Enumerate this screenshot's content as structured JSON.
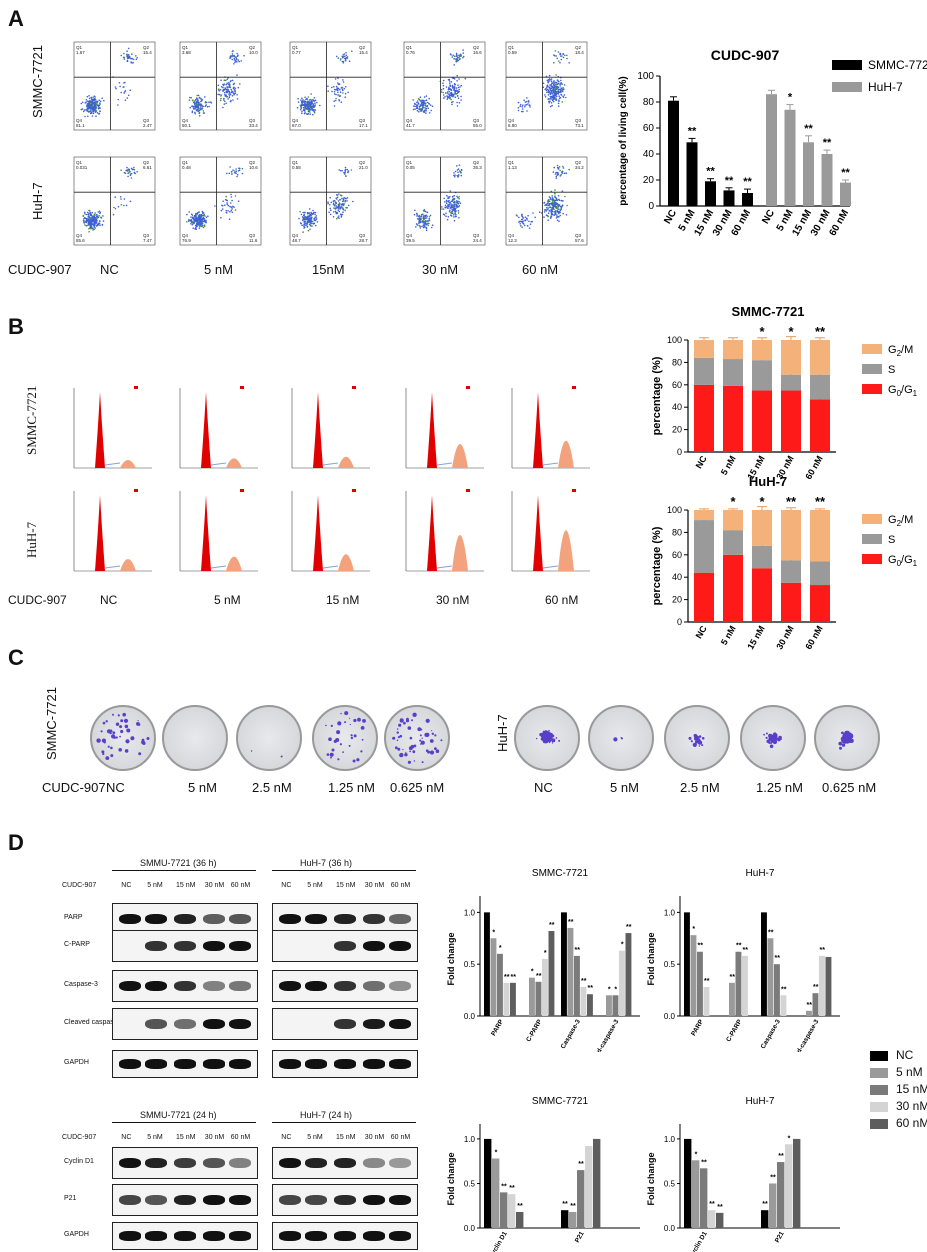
{
  "panel_labels": {
    "a": "A",
    "b": "B",
    "c": "C",
    "d": "D"
  },
  "panel_a": {
    "row_labels": [
      "SMMC-7721",
      "HuH-7"
    ],
    "treatment_label": "CUDC-907",
    "doses": [
      "NC",
      "5 nM",
      "15nM",
      "30 nM",
      "60 nM"
    ],
    "quadrant_values": [
      [
        [
          "1.67",
          "15.4",
          "81.1",
          "2.47"
        ],
        [
          "3.68",
          "10.0",
          "50.1",
          "33.4"
        ],
        [
          "0.77",
          "15.4",
          "67.0",
          "17.1"
        ],
        [
          "0.76",
          "16.6",
          "41.7",
          "55.0"
        ],
        [
          "0.59",
          "18.4",
          "6.90",
          "73.1"
        ]
      ],
      [
        [
          "0.031",
          "6.61",
          "85.6",
          "7.47"
        ],
        [
          "0.48",
          "10.6",
          "76.9",
          "11.6"
        ],
        [
          "0.58",
          "21.0",
          "48.7",
          "28.7"
        ],
        [
          "0.05",
          "35.3",
          "39.5",
          "24.4"
        ],
        [
          "1.13",
          "34.2",
          "12.3",
          "57.6"
        ]
      ]
    ],
    "quadrant_names": [
      "Q1",
      "Q2",
      "Q4",
      "Q3"
    ]
  },
  "panel_b": {
    "row_labels": [
      "SMMC-7721",
      "HuH-7"
    ],
    "treatment_label": "CUDC-907",
    "doses": [
      "NC",
      "5 nM",
      "15 nM",
      "30 nM",
      "60 nM"
    ]
  },
  "panel_c": {
    "row_labels": [
      "SMMC-7721",
      "HuH-7"
    ],
    "treatment_label": "CUDC-907",
    "doses": [
      "NC",
      "5 nM",
      "2.5 nM",
      "1.25 nM",
      "0.625 nM"
    ]
  },
  "panel_d": {
    "group_titles_top": [
      "SMMU-7721 (36 h)",
      "HuH-7 (36 h)"
    ],
    "group_titles_bottom": [
      "SMMU-7721 (24 h)",
      "HuH-7 (24 h)"
    ],
    "treatment_label": "CUDC-907",
    "lane_labels": [
      "NC",
      "5 nM",
      "15 nM",
      "30 nM",
      "60 nM"
    ],
    "blot_labels_top": [
      "PARP",
      "C-PARP",
      "Caspase-3",
      "Cleaved caspase-3",
      "GAPDH"
    ],
    "blot_labels_bottom": [
      "Cyclin D1",
      "P21",
      "GAPDH"
    ],
    "legend": [
      "NC",
      "5 nM",
      "15 nM",
      "30 nM",
      "60 nM"
    ],
    "legend_colors": [
      "#000000",
      "#9a9a9a",
      "#7b7b7b",
      "#d4d4d4",
      "#5e5e5e"
    ]
  },
  "chart_data": [
    {
      "id": "a-living",
      "type": "bar",
      "title": "CUDC-907",
      "ylabel": "percentage of living cell(%)",
      "ylim": [
        0,
        100
      ],
      "yticks": [
        0,
        20,
        40,
        60,
        80,
        100
      ],
      "groups": [
        "SMMC-7721",
        "HuH-7"
      ],
      "group_colors": [
        "#000000",
        "#9a9a9a"
      ],
      "categories": [
        "NC",
        "5 nM",
        "15 nM",
        "30 nM",
        "60 nM"
      ],
      "series": [
        {
          "name": "SMMC-7721",
          "values": [
            81,
            49,
            19,
            12,
            10
          ],
          "errors": [
            3,
            3,
            2,
            2,
            3
          ],
          "sig": [
            "",
            "**",
            "**",
            "**",
            "**"
          ]
        },
        {
          "name": "HuH-7",
          "values": [
            86,
            74,
            49,
            40,
            18
          ],
          "errors": [
            3,
            4,
            5,
            3,
            2
          ],
          "sig": [
            "",
            "*",
            "**",
            "**",
            "**"
          ]
        }
      ]
    },
    {
      "id": "b-smmc",
      "type": "bar",
      "stacked": true,
      "title": "SMMC-7721",
      "ylabel": "percentage (%)",
      "ylim": [
        0,
        100
      ],
      "yticks": [
        0,
        20,
        40,
        60,
        80,
        100
      ],
      "categories": [
        "NC",
        "5 nM",
        "15 nM",
        "30 nM",
        "60 nM"
      ],
      "sig": [
        "",
        "",
        "*",
        "*",
        "**"
      ],
      "series": [
        {
          "name": "G0/G1",
          "color": "#ff1a1a",
          "values": [
            60,
            59,
            55,
            55,
            47
          ],
          "errors": [
            4,
            3,
            9,
            1,
            1
          ]
        },
        {
          "name": "S",
          "color": "#9a9a9a",
          "values": [
            24,
            24,
            27,
            14,
            22
          ],
          "errors": [
            5,
            2,
            7,
            3,
            1
          ]
        },
        {
          "name": "G2/M",
          "color": "#f4b27a",
          "values": [
            16,
            17,
            18,
            31,
            31
          ],
          "errors": [
            2,
            2,
            2,
            3,
            2
          ]
        }
      ]
    },
    {
      "id": "b-huh",
      "type": "bar",
      "stacked": true,
      "title": "HuH-7",
      "ylabel": "percentage (%)",
      "ylim": [
        0,
        100
      ],
      "yticks": [
        0,
        20,
        40,
        60,
        80,
        100
      ],
      "categories": [
        "NC",
        "5 nM",
        "15 nM",
        "30 nM",
        "60 nM"
      ],
      "sig": [
        "",
        "*",
        "*",
        "**",
        "**"
      ],
      "series": [
        {
          "name": "G0/G1",
          "color": "#ff1a1a",
          "values": [
            44,
            60,
            48,
            35,
            33
          ],
          "errors": [
            1,
            2,
            2,
            2,
            1
          ]
        },
        {
          "name": "S",
          "color": "#9a9a9a",
          "values": [
            47,
            22,
            20,
            20,
            21
          ],
          "errors": [
            1,
            1,
            5,
            1,
            1
          ]
        },
        {
          "name": "G2/M",
          "color": "#f4b27a",
          "values": [
            9,
            18,
            32,
            45,
            46
          ],
          "errors": [
            1,
            1,
            3,
            2,
            1
          ]
        }
      ]
    },
    {
      "id": "d-smmc-apop",
      "type": "bar",
      "title": "SMMC-7721",
      "ylabel": "Fold change",
      "ylim": [
        0,
        1.1
      ],
      "yticks": [
        0.0,
        0.5,
        1.0
      ],
      "categories": [
        "PARP",
        "C-PARP",
        "Caspase-3",
        "Cleaved-caspase-3"
      ],
      "series": [
        {
          "name": "NC",
          "values": [
            1.0,
            0.0,
            1.0,
            0.0
          ]
        },
        {
          "name": "5 nM",
          "values": [
            0.75,
            0.37,
            0.85,
            0.2
          ]
        },
        {
          "name": "15 nM",
          "values": [
            0.6,
            0.33,
            0.58,
            0.2
          ]
        },
        {
          "name": "30 nM",
          "values": [
            0.32,
            0.55,
            0.28,
            0.63
          ]
        },
        {
          "name": "60 nM",
          "values": [
            0.32,
            0.82,
            0.21,
            0.8
          ]
        }
      ],
      "sig": [
        [
          "",
          "*",
          "*",
          "**",
          "**"
        ],
        [
          "",
          "*",
          "**",
          "*",
          "**"
        ],
        [
          "",
          "**",
          "**",
          "**",
          "**"
        ],
        [
          "",
          "*",
          "*",
          "*",
          "**"
        ]
      ]
    },
    {
      "id": "d-huh-apop",
      "type": "bar",
      "title": "HuH-7",
      "ylabel": "Fold change",
      "ylim": [
        0,
        1.1
      ],
      "yticks": [
        0.0,
        0.5,
        1.0
      ],
      "categories": [
        "PARP",
        "C-PARP",
        "Caspase-3",
        "Cleaved-caspase-3"
      ],
      "series": [
        {
          "name": "NC",
          "values": [
            1.0,
            0.0,
            1.0,
            0.0
          ]
        },
        {
          "name": "5 nM",
          "values": [
            0.78,
            0.32,
            0.75,
            0.05
          ]
        },
        {
          "name": "15 nM",
          "values": [
            0.62,
            0.62,
            0.5,
            0.22
          ]
        },
        {
          "name": "30 nM",
          "values": [
            0.28,
            0.58,
            0.2,
            0.58
          ]
        },
        {
          "name": "60 nM",
          "values": [
            0.0,
            0.0,
            0.0,
            0.57
          ]
        }
      ],
      "sig": [
        [
          "",
          "*",
          "**",
          "**",
          ""
        ],
        [
          "",
          "**",
          "**",
          "**",
          ""
        ],
        [
          "",
          "**",
          "**",
          "**",
          ""
        ],
        [
          "",
          "**",
          "**",
          "**",
          ""
        ]
      ]
    },
    {
      "id": "d-smmc-cyc",
      "type": "bar",
      "title": "SMMC-7721",
      "ylabel": "Fold change",
      "ylim": [
        0,
        1.1
      ],
      "yticks": [
        0.0,
        0.5,
        1.0
      ],
      "categories": [
        "Cyclin D1",
        "P21"
      ],
      "series": [
        {
          "name": "NC",
          "values": [
            1.0,
            0.2
          ]
        },
        {
          "name": "5 nM",
          "values": [
            0.78,
            0.18
          ]
        },
        {
          "name": "15 nM",
          "values": [
            0.4,
            0.65
          ]
        },
        {
          "name": "30 nM",
          "values": [
            0.38,
            0.92
          ]
        },
        {
          "name": "60 nM",
          "values": [
            0.18,
            1.0
          ]
        }
      ],
      "sig": [
        [
          "",
          "*",
          "**",
          "**",
          "**"
        ],
        [
          "**",
          "**",
          "**",
          "",
          ""
        ]
      ]
    },
    {
      "id": "d-huh-cyc",
      "type": "bar",
      "title": "HuH-7",
      "ylabel": "Fold change",
      "ylim": [
        0,
        1.1
      ],
      "yticks": [
        0.0,
        0.5,
        1.0
      ],
      "categories": [
        "Cyclin D1",
        "P21"
      ],
      "series": [
        {
          "name": "NC",
          "values": [
            1.0,
            0.2
          ]
        },
        {
          "name": "5 nM",
          "values": [
            0.76,
            0.5
          ]
        },
        {
          "name": "15 nM",
          "values": [
            0.67,
            0.74
          ]
        },
        {
          "name": "30 nM",
          "values": [
            0.2,
            0.94
          ]
        },
        {
          "name": "60 nM",
          "values": [
            0.17,
            1.0
          ]
        }
      ],
      "sig": [
        [
          "",
          "*",
          "**",
          "**",
          "**"
        ],
        [
          "**",
          "**",
          "**",
          "*",
          ""
        ]
      ]
    }
  ]
}
